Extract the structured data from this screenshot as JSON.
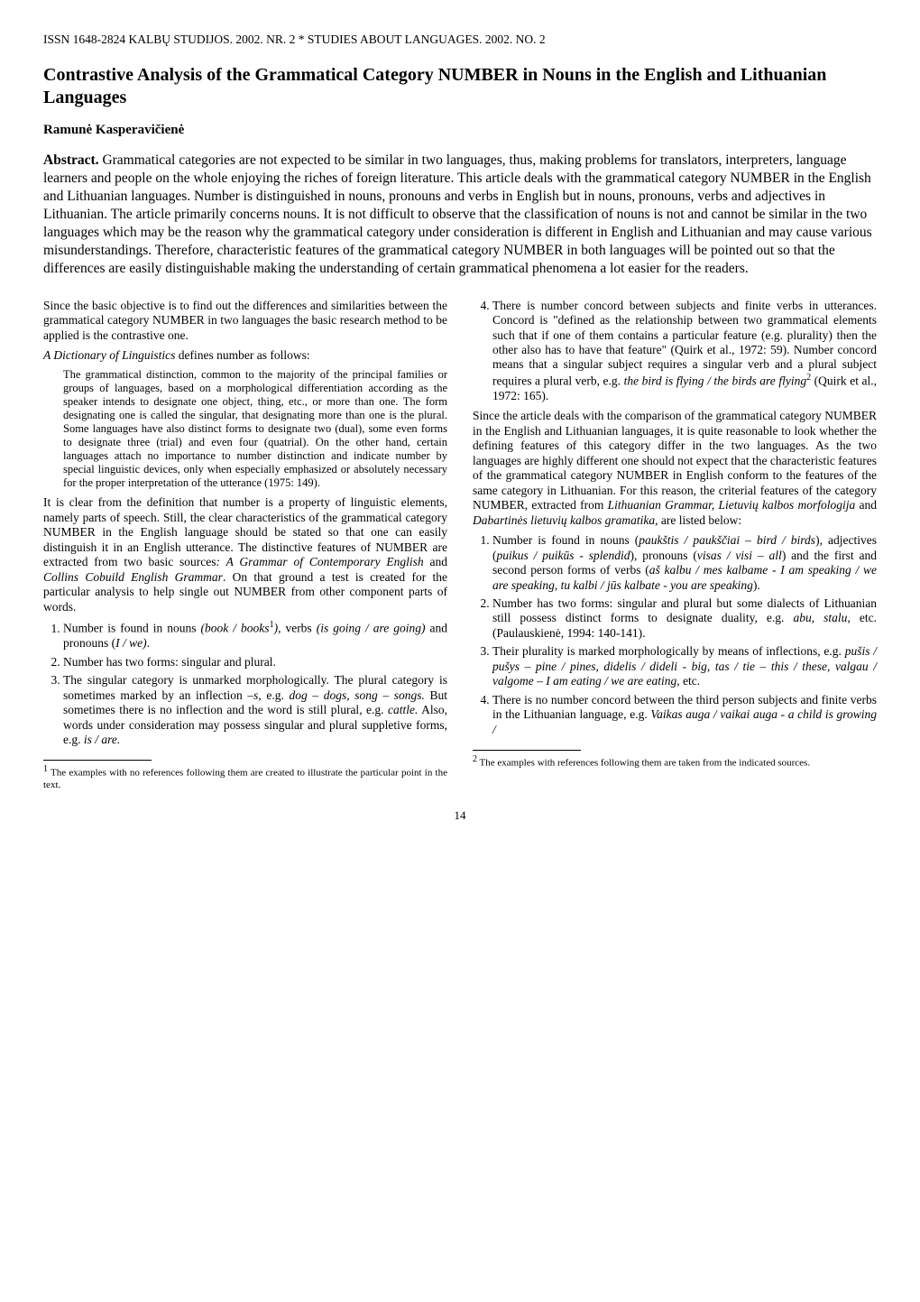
{
  "issn": "ISSN 1648-2824   KALBŲ STUDIJOS. 2002. NR. 2 * STUDIES ABOUT LANGUAGES. 2002. NO. 2",
  "title": "Contrastive Analysis of the Grammatical Category NUMBER in Nouns in the English and Lithuanian Languages",
  "author": "Ramunė Kasperavičienė",
  "abstract_label": "Abstract.",
  "abstract": "Grammatical categories are not expected to be similar in two languages, thus, making problems for translators, interpreters, language learners and people on the whole enjoying the riches of foreign literature. This article deals with the grammatical category NUMBER in the English and Lithuanian languages. Number is distinguished in nouns, pronouns and verbs in English but in nouns, pronouns, verbs and adjectives in Lithuanian. The article primarily concerns nouns. It is not difficult to observe that the classification of nouns is not and cannot be similar in the two languages which may be the reason why the grammatical category under consideration is different in English and Lithuanian and may cause various misunderstandings. Therefore, characteristic features of the grammatical category NUMBER in both languages will be pointed out so that the differences are easily distinguishable making the understanding of certain grammatical phenomena a lot easier for the readers.",
  "left": {
    "p1": "Since the basic objective is to find out the differences and similarities between the grammatical category NUMBER in two languages the basic research method to be applied is the contrastive one.",
    "dict_intro_italic": "A Dictionary of Linguistics",
    "dict_intro_rest": " defines number as follows:",
    "dict_quote": "The grammatical distinction, common to the majority of the principal families or groups of languages, based on a morphological differentiation according as the speaker intends to designate one object, thing, etc., or more than one. The form designating one is called the singular, that designating more than one is the plural. Some languages have also distinct forms to designate two (dual), some even forms to designate three (trial) and even four (quatrial). On the other hand, certain languages attach no importance to number distinction and indicate number by special linguistic devices, only when especially emphasized or absolutely necessary for the proper interpretation of the utterance (1975: 149).",
    "p3a": "It is clear from the definition that number is a property of linguistic elements, namely parts of speech. Still, the clear characteristics of the grammatical category NUMBER in the English language should be stated so that one can easily distinguish it in an English utterance. The distinctive features of NUMBER are extracted from two basic sources",
    "p3b_it1": ": A Grammar of Contemporary English",
    "p3c": " and ",
    "p3b_it2": "Collins Cobuild English Grammar",
    "p3d": ". On that ground a test is created for the particular analysis to help single out NUMBER from other component parts of words.",
    "list": {
      "i1a": "Number is found in nouns ",
      "i1b_it": "(book / books",
      "i1sup": "1",
      "i1c_it": ")",
      "i1d": ", verbs ",
      "i1e_it": "(is going / are going)",
      "i1f": " and pronouns (",
      "i1g_it": "I / we)",
      "i1h": ".",
      "i2": "Number has two forms: singular and plural.",
      "i3a": "The singular category is unmarked morphologically. The plural category is sometimes marked by an inflection  –",
      "i3b_it": "s",
      "i3c": ", e.g. ",
      "i3d_it": "dog – dogs, song – songs.",
      "i3e": " But sometimes there is no inflection and the word is still plural, e.g. ",
      "i3f_it": "cattle.",
      "i3g": " Also, words under consideration may possess singular and plural suppletive forms, e.g. ",
      "i3h_it": "is / are."
    },
    "footnote_sup": "1",
    "footnote": " The examples with no references following them are created to illustrate the particular point in the text."
  },
  "right": {
    "list_start": {
      "i4a": "There is number concord between subjects and finite verbs in utterances. Concord is \"defined as the relationship between two grammatical elements such that if one of them contains a particular feature (e.g. plurality) then the other also has to have that feature\" (Quirk et al., 1972: 59). Number concord means that a singular subject requires a singular verb and a plural subject requires a plural verb, e.g. ",
      "i4b_it": "the bird is flying / the birds are flying",
      "i4sup": "2",
      "i4c": " (Quirk et al., 1972: 165)."
    },
    "p1a": "Since the article deals with the comparison of the grammatical category NUMBER in the English and Lithuanian languages, it is quite reasonable to look whether the defining features of this category differ in the two languages. As the two languages are highly different one should not expect that the characteristic features of the grammatical category NUMBER in English conform to the features of the same category in Lithuanian. For this reason, the criterial features of the category NUMBER, extracted from ",
    "p1b_it": "Lithuanian Grammar, Lietuvių kalbos morfologija",
    "p1c": " and ",
    "p1d_it": "Dabartinės lietuvių kalbos gramatika",
    "p1e": ", are listed below:",
    "list2": {
      "i1a": "Number is found in nouns (",
      "i1b_it": "paukštis / paukščiai – bird / birds",
      "i1c": "), adjectives (",
      "i1d_it": "puikus / puikūs",
      "i1e": " - ",
      "i1f_it": "splendid",
      "i1g": "), pronouns (",
      "i1h_it": "visas / visi – all",
      "i1i": ") and the first and second person forms of verbs (",
      "i1j_it": "aš kalbu / mes kalbame - I am speaking / we are speaking, tu kalbi / jūs kalbate - you are speaking",
      "i1k": ").",
      "i2a": "Number has two forms: singular and plural but some dialects of Lithuanian still possess distinct forms to designate duality, e.g. ",
      "i2b_it": "abu, stalu",
      "i2c": ", etc. (Paulauskienė, 1994: 140-141).",
      "i3a": "Their plurality is marked morphologically by means of inflections, e.g. ",
      "i3b_it": "pušis / pušys – pine / pines, didelis / dideli - big, tas / tie – this / these, valgau / valgome – I am eating / we are eating,",
      "i3c": " etc.",
      "i4a": "There is no number concord between the third person subjects and finite verbs in the Lithuanian language, e.g. ",
      "i4b_it": "Vaikas auga / vaikai auga",
      "i4c": " - ",
      "i4d_it": "a child is growing /"
    },
    "footnote_sup": "2",
    "footnote": " The examples with references following them are taken from the indicated sources."
  },
  "pagenum": "14"
}
